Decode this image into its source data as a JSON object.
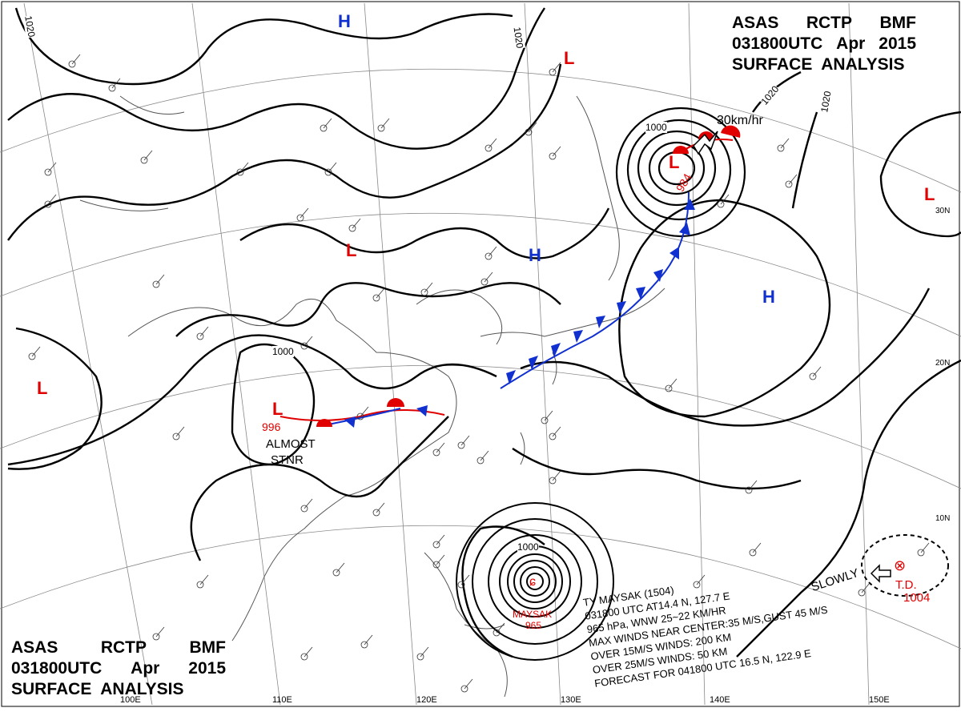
{
  "title_top_right": {
    "line1": [
      "ASAS",
      "RCTP",
      "BMF"
    ],
    "line2": [
      "031800UTC",
      "Apr",
      "2015"
    ],
    "line3": "SURFACE  ANALYSIS"
  },
  "title_bottom_left": {
    "line1": [
      "ASAS",
      "RCTP",
      "BMF"
    ],
    "line2": [
      "031800UTC",
      "Apr",
      "2015"
    ],
    "line3": "SURFACE  ANALYSIS"
  },
  "longitude_labels": [
    "110E",
    "120E",
    "130E",
    "140E",
    "150E",
    "100E"
  ],
  "latitude_labels": [
    "30N",
    "20N",
    "10N"
  ],
  "isobar_labels": [
    "1020",
    "1020",
    "1020",
    "1020",
    "1000",
    "1000",
    "1000"
  ],
  "pressure_centers": [
    {
      "type": "L",
      "label": "L",
      "value": "996",
      "note": ""
    },
    {
      "type": "L",
      "label": "L",
      "value": "984",
      "note": ""
    },
    {
      "type": "L",
      "label": "L",
      "value": "",
      "note": ""
    },
    {
      "type": "L",
      "label": "L",
      "value": "",
      "note": ""
    },
    {
      "type": "L",
      "label": "L",
      "value": "",
      "note": ""
    },
    {
      "type": "L",
      "label": "L",
      "value": "",
      "note": ""
    },
    {
      "type": "H",
      "label": "H",
      "value": "",
      "note": ""
    },
    {
      "type": "H",
      "label": "H",
      "value": "",
      "note": ""
    },
    {
      "type": "H",
      "label": "H",
      "value": "",
      "note": ""
    }
  ],
  "annotations": {
    "almost_stnr": [
      "ALMOST",
      "STNR"
    ],
    "motion_speed": "30km/hr",
    "slowly": "SLOWLY",
    "td_label": "T.D.",
    "td_pressure": "1004",
    "typhoon_name": "MAYSAK",
    "typhoon_pressure": "965"
  },
  "typhoon_info": {
    "line1": "TY  MAYSAK  (1504)",
    "line2": "031800 UTC  AT14.4 N, 127.7 E",
    "line3": "965 hPa, WNW  25~22 KM/HR",
    "line4": "MAX WINDS NEAR CENTER:35 M/S,GUST 45 M/S",
    "line5": "OVER 15M/S WINDS: 200 KM",
    "line6": "OVER 25M/S WINDS: 50 KM",
    "line7": "FORECAST FOR 041800 UTC 16.5 N, 122.9 E"
  },
  "colors": {
    "low": "#e00000",
    "high": "#1030d0",
    "cold_front": "#1030d0",
    "warm_front": "#e00000",
    "isobar": "#000000",
    "coast": "#555555",
    "grid": "#777777"
  }
}
